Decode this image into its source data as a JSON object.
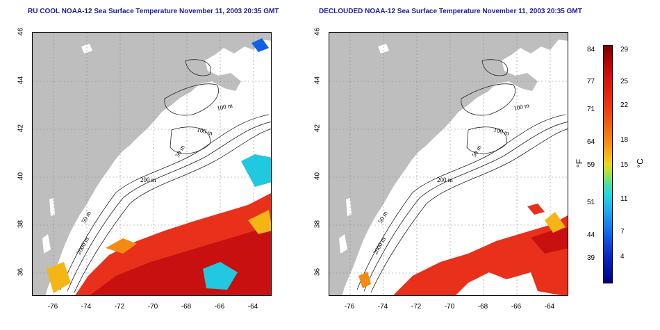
{
  "titles": {
    "left": "RU COOL NOAA-12 Sea Surface Temperature November 11, 2003 20:35 GMT",
    "right": "DECLOUDED NOAA-12 Sea Surface Temperature November 11, 2003 20:35 GMT"
  },
  "axes": {
    "lat_ticks": [
      "46",
      "44",
      "42",
      "40",
      "38",
      "36"
    ],
    "lon_ticks": [
      "-76",
      "-74",
      "-72",
      "-70",
      "-68",
      "-66",
      "-64"
    ]
  },
  "contour_labels": {
    "left": [
      "100 m",
      "100 m",
      "50 m",
      "200 m",
      "50 m",
      "2000 m"
    ],
    "right": [
      "100 m",
      "100 m",
      "50 m",
      "200 m",
      "50 m",
      "2000 m"
    ]
  },
  "colorbar": {
    "fahrenheit_ticks": [
      "84",
      "77",
      "71",
      "64",
      "59",
      "51",
      "44",
      "39"
    ],
    "celsius_ticks": [
      "29",
      "25",
      "22",
      "18",
      "15",
      "11",
      "7",
      "4"
    ],
    "unit_f": "°F",
    "unit_c": "°C"
  },
  "colors": {
    "land": "#bebebe",
    "title": "#1a1aa6",
    "warm": "#e8301a",
    "hot": "#c81010"
  }
}
